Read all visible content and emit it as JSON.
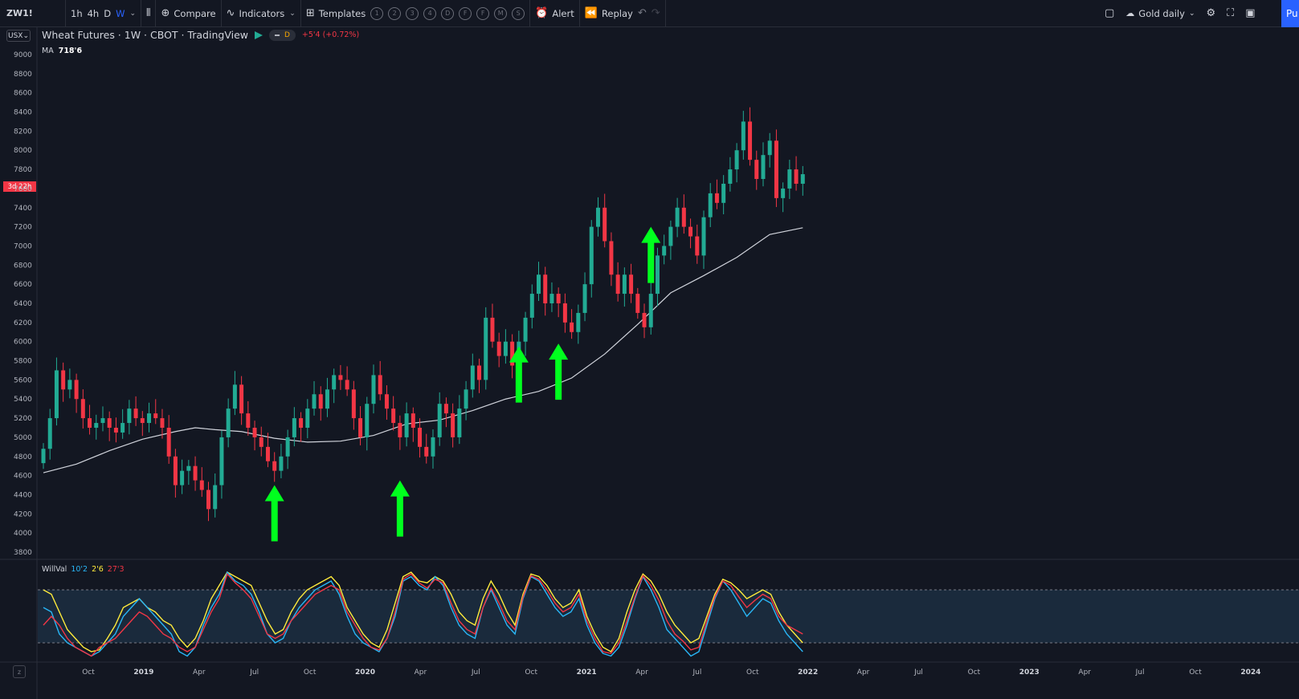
{
  "toolbar": {
    "symbol": "ZW1!",
    "intervals": [
      "1h",
      "4h",
      "D",
      "W"
    ],
    "active_interval": "W",
    "compare_label": "Compare",
    "indicators_label": "Indicators",
    "templates_label": "Templates",
    "template_slots": [
      "1",
      "2",
      "3",
      "4",
      "D",
      "F",
      "F",
      "M",
      "S"
    ],
    "alert_label": "Alert",
    "replay_label": "Replay",
    "layout_label": "Gold daily",
    "publish_label": "Pu"
  },
  "legend": {
    "title": "Wheat Futures · 1W · CBOT · TradingView",
    "badge": "D",
    "change": "+5'4 (+0.72%)",
    "ma_label": "MA",
    "ma_value": "718'6"
  },
  "price_scale": {
    "currency": "USX",
    "ticks": [
      "9000",
      "8800",
      "8600",
      "8400",
      "8200",
      "8000",
      "7800",
      "7600",
      "7400",
      "7200",
      "7000",
      "6800",
      "6600",
      "6400",
      "6200",
      "6000",
      "5800",
      "5600",
      "5400",
      "5200",
      "5000",
      "4800",
      "4600",
      "4400",
      "4200",
      "4000",
      "3800"
    ],
    "countdown": "3d 22h"
  },
  "time_axis": {
    "labels": [
      "Oct",
      "2019",
      "Apr",
      "Jul",
      "Oct",
      "2020",
      "Apr",
      "Jul",
      "Oct",
      "2021",
      "Apr",
      "Jul",
      "Oct",
      "2022",
      "Apr",
      "Jul",
      "Oct",
      "2023",
      "Apr",
      "Jul",
      "Oct",
      "2024"
    ]
  },
  "indicator": {
    "name": "WillVal",
    "value1": "10'2",
    "value2": "2'6",
    "value3": "27'3",
    "colors": {
      "series1": "#29b6f6",
      "series2": "#ffeb3b",
      "series3": "#f23645"
    }
  },
  "colors": {
    "up": "#22ab94",
    "down": "#f23645",
    "ma": "#d1d4dc",
    "arrow": "#00ff1e",
    "band": "#1a2a3c"
  },
  "chart_data": {
    "type": "candlestick",
    "title": "Wheat Futures · 1W · CBOT · TradingView",
    "ylim": [
      3800,
      9000
    ],
    "candles_close": [
      4880,
      5200,
      5700,
      5500,
      5600,
      5400,
      5200,
      5100,
      5150,
      5200,
      5100,
      5050,
      5150,
      5300,
      5200,
      5150,
      5250,
      5200,
      5100,
      4800,
      4500,
      4650,
      4700,
      4550,
      4450,
      4250,
      4500,
      5000,
      5300,
      5550,
      5250,
      5100,
      5000,
      4900,
      4750,
      4650,
      4800,
      5000,
      5200,
      5100,
      5300,
      5450,
      5300,
      5500,
      5650,
      5600,
      5500,
      5200,
      5000,
      5350,
      5650,
      5450,
      5300,
      5150,
      5000,
      5250,
      5100,
      4900,
      4800,
      5000,
      5350,
      5250,
      5000,
      5300,
      5500,
      5750,
      5600,
      6250,
      6000,
      5850,
      6000,
      5750,
      6000,
      6250,
      6500,
      6700,
      6400,
      6500,
      6400,
      6200,
      6100,
      6300,
      6600,
      7200,
      7400,
      7050,
      6700,
      6500,
      6700,
      6500,
      6300,
      6150,
      6500,
      6900,
      7000,
      7200,
      7400,
      7200,
      7100,
      6900,
      7300,
      7550,
      7450,
      7650,
      7800,
      8000,
      8300,
      7900,
      7700,
      7950,
      8100,
      7500,
      7600,
      7800,
      7650,
      7750
    ],
    "ma_points": [
      [
        0,
        4630
      ],
      [
        5,
        4720
      ],
      [
        10,
        4860
      ],
      [
        15,
        4980
      ],
      [
        20,
        5060
      ],
      [
        23,
        5100
      ],
      [
        26,
        5080
      ],
      [
        30,
        5060
      ],
      [
        35,
        4990
      ],
      [
        40,
        4950
      ],
      [
        45,
        4960
      ],
      [
        50,
        5020
      ],
      [
        55,
        5140
      ],
      [
        60,
        5180
      ],
      [
        65,
        5280
      ],
      [
        70,
        5400
      ],
      [
        75,
        5480
      ],
      [
        80,
        5620
      ],
      [
        85,
        5870
      ],
      [
        90,
        6180
      ],
      [
        95,
        6510
      ],
      [
        100,
        6690
      ],
      [
        105,
        6880
      ],
      [
        110,
        7120
      ],
      [
        115,
        7190
      ]
    ],
    "signal_arrows": [
      [
        35,
        4500
      ],
      [
        54,
        4550
      ],
      [
        72,
        5950
      ],
      [
        78,
        5980
      ],
      [
        92,
        7200
      ]
    ],
    "oscillator": {
      "ylim": [
        0,
        100
      ],
      "upper_band": 80,
      "lower_band": 20,
      "series": [
        {
          "name": "10'2",
          "values": [
            60,
            55,
            30,
            20,
            15,
            10,
            5,
            10,
            20,
            30,
            50,
            60,
            70,
            60,
            50,
            40,
            30,
            10,
            5,
            15,
            40,
            60,
            75,
            100,
            90,
            85,
            75,
            55,
            30,
            20,
            25,
            45,
            60,
            70,
            80,
            85,
            90,
            75,
            50,
            30,
            20,
            15,
            10,
            25,
            50,
            90,
            95,
            85,
            80,
            95,
            85,
            60,
            40,
            30,
            25,
            60,
            80,
            60,
            40,
            30,
            70,
            95,
            90,
            75,
            60,
            50,
            55,
            70,
            40,
            20,
            8,
            5,
            15,
            40,
            70,
            95,
            80,
            60,
            35,
            25,
            15,
            5,
            10,
            40,
            70,
            90,
            80,
            65,
            50,
            60,
            70,
            65,
            45,
            30,
            20,
            10
          ]
        },
        {
          "name": "2'6",
          "values": [
            80,
            75,
            55,
            35,
            25,
            15,
            10,
            12,
            25,
            40,
            60,
            65,
            70,
            60,
            55,
            45,
            40,
            25,
            15,
            25,
            45,
            70,
            85,
            100,
            95,
            90,
            85,
            65,
            45,
            30,
            35,
            55,
            70,
            80,
            85,
            90,
            95,
            85,
            60,
            45,
            30,
            20,
            15,
            35,
            65,
            95,
            100,
            90,
            88,
            95,
            90,
            75,
            55,
            45,
            40,
            70,
            90,
            75,
            55,
            40,
            75,
            98,
            95,
            85,
            70,
            60,
            65,
            80,
            50,
            30,
            15,
            10,
            25,
            55,
            80,
            98,
            90,
            75,
            55,
            40,
            30,
            20,
            25,
            50,
            75,
            92,
            88,
            80,
            70,
            75,
            80,
            75,
            55,
            40,
            30,
            20
          ]
        },
        {
          "name": "27'3",
          "values": [
            40,
            50,
            40,
            25,
            15,
            10,
            5,
            15,
            20,
            25,
            35,
            45,
            55,
            50,
            40,
            30,
            25,
            15,
            10,
            15,
            35,
            55,
            70,
            98,
            88,
            80,
            70,
            50,
            30,
            25,
            30,
            45,
            55,
            65,
            75,
            80,
            85,
            80,
            55,
            40,
            25,
            15,
            12,
            25,
            55,
            92,
            98,
            88,
            82,
            92,
            88,
            65,
            45,
            35,
            30,
            60,
            82,
            65,
            45,
            35,
            72,
            96,
            92,
            80,
            65,
            55,
            60,
            75,
            45,
            25,
            10,
            8,
            20,
            45,
            72,
            96,
            85,
            68,
            45,
            30,
            22,
            12,
            15,
            45,
            72,
            90,
            85,
            72,
            60,
            68,
            75,
            70,
            50,
            40,
            35,
            30
          ]
        }
      ]
    }
  }
}
